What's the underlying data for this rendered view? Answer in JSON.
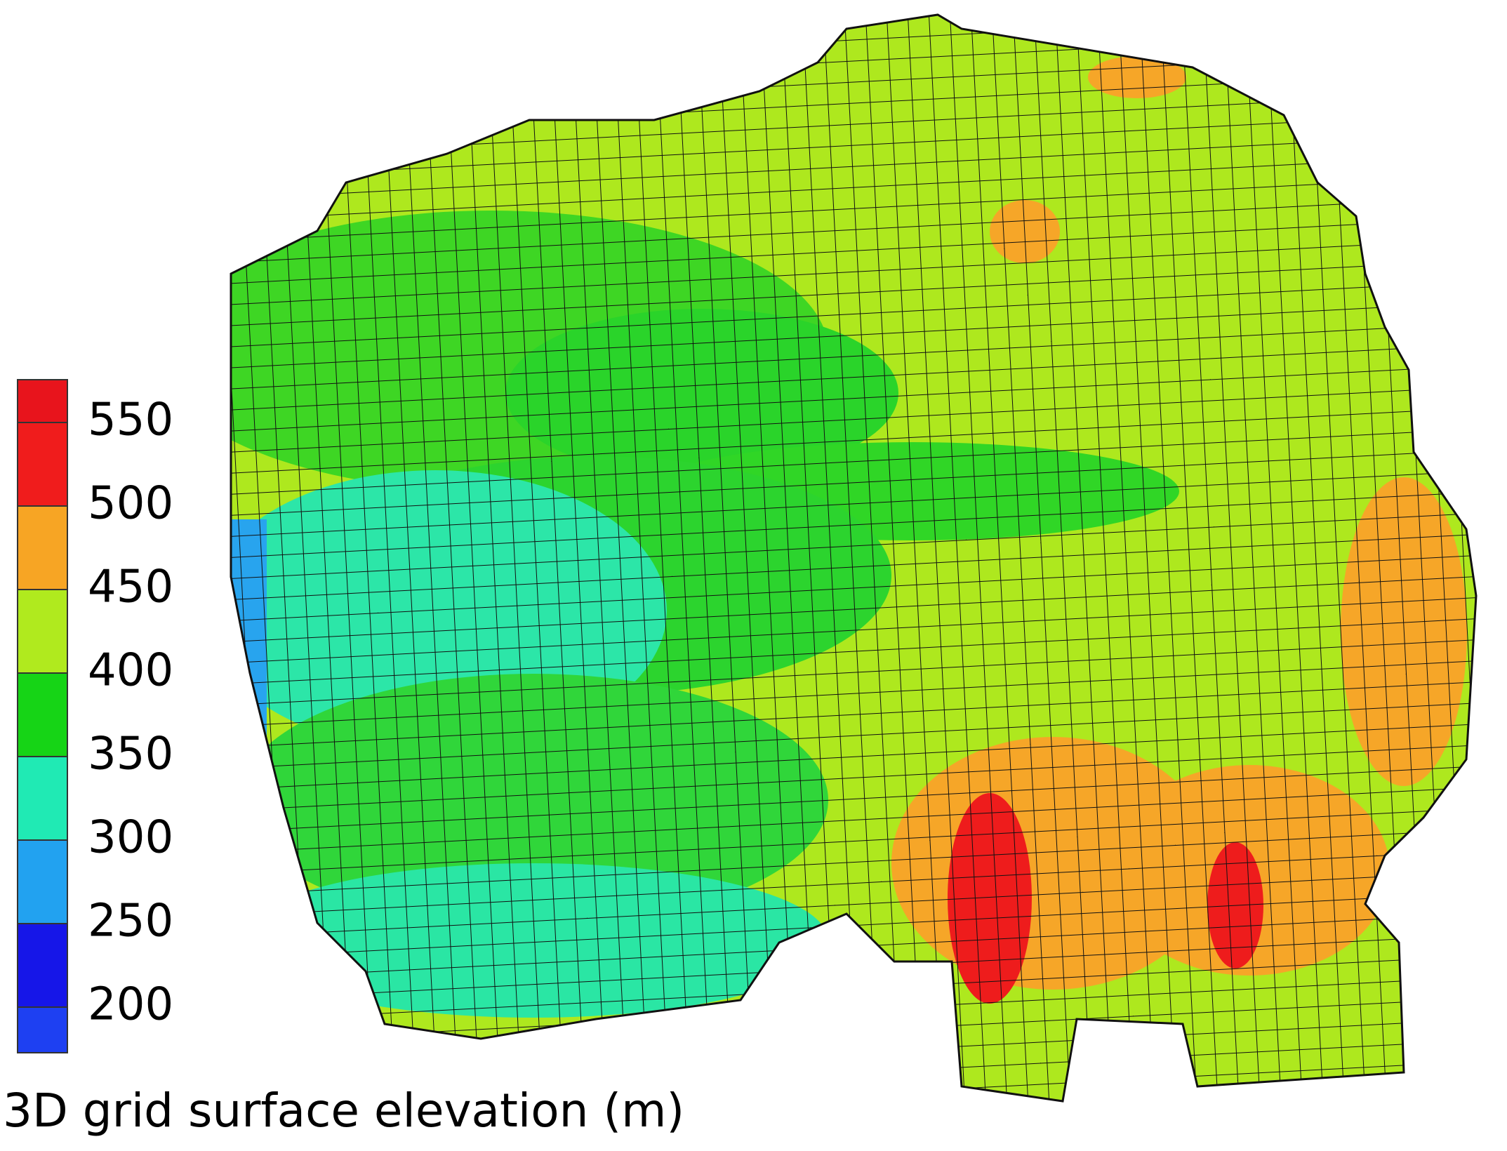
{
  "colorbar": {
    "ticks": [
      550,
      500,
      450,
      400,
      350,
      300,
      250,
      200
    ],
    "colors": [
      "#e8141c",
      "#f01c1c",
      "#f7a524",
      "#b0ea1e",
      "#16d416",
      "#20eab4",
      "#22a2f0",
      "#1616e8",
      "#1e40f2"
    ]
  },
  "caption": "3D grid surface elevation (m)"
}
